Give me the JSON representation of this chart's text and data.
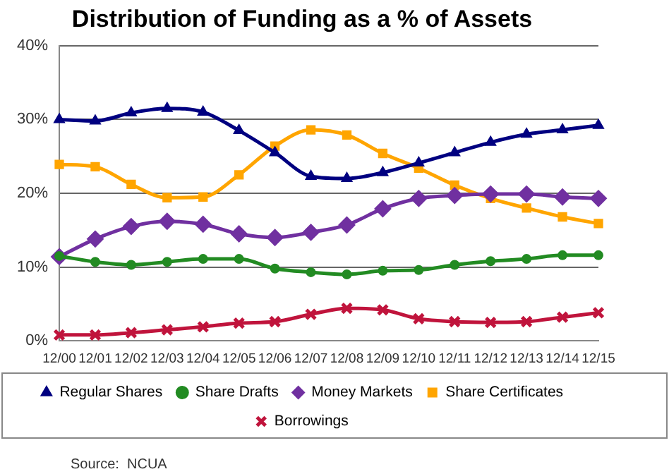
{
  "chart_data": {
    "type": "line",
    "title": "Distribution of Funding as a % of Assets",
    "categories": [
      "12/00",
      "12/01",
      "12/02",
      "12/03",
      "12/04",
      "12/05",
      "12/06",
      "12/07",
      "12/08",
      "12/09",
      "12/10",
      "12/11",
      "12/12",
      "12/13",
      "12/14",
      "12/15"
    ],
    "series": [
      {
        "name": "Regular Shares",
        "color": "#000080",
        "marker": "triangle",
        "values": [
          30.0,
          29.8,
          30.9,
          31.5,
          31.0,
          28.5,
          25.5,
          22.3,
          22.0,
          22.8,
          24.1,
          25.5,
          26.9,
          28.0,
          28.6,
          29.2
        ]
      },
      {
        "name": "Share Drafts",
        "color": "#228b22",
        "marker": "circle",
        "values": [
          11.5,
          10.7,
          10.3,
          10.7,
          11.1,
          11.1,
          9.8,
          9.3,
          9.0,
          9.5,
          9.6,
          10.3,
          10.8,
          11.1,
          11.6,
          11.6
        ]
      },
      {
        "name": "Money Markets",
        "color": "#7030a0",
        "marker": "diamond",
        "values": [
          11.4,
          13.8,
          15.5,
          16.2,
          15.8,
          14.5,
          14.0,
          14.7,
          15.7,
          17.9,
          19.3,
          19.7,
          19.9,
          19.9,
          19.5,
          19.3
        ]
      },
      {
        "name": "Share Certificates",
        "color": "#ffa500",
        "marker": "square",
        "values": [
          23.9,
          23.6,
          21.2,
          19.4,
          19.5,
          22.5,
          26.4,
          28.6,
          27.9,
          25.4,
          23.4,
          21.1,
          19.3,
          18.0,
          16.8,
          15.9
        ]
      },
      {
        "name": "Borrowings",
        "color": "#c0143c",
        "marker": "cross",
        "values": [
          0.8,
          0.8,
          1.1,
          1.5,
          1.9,
          2.4,
          2.6,
          3.6,
          4.4,
          4.2,
          3.0,
          2.6,
          2.5,
          2.6,
          3.2,
          3.8
        ]
      }
    ],
    "ylim": [
      0,
      40
    ],
    "yticks": [
      {
        "value": 0,
        "label": "0%"
      },
      {
        "value": 10,
        "label": "10%"
      },
      {
        "value": 20,
        "label": "20%"
      },
      {
        "value": 30,
        "label": "30%"
      },
      {
        "value": 40,
        "label": "40%"
      }
    ],
    "grid": "y",
    "legend": "bottom",
    "line_style": "solid",
    "annotations": [
      "Source:  NCUA"
    ]
  }
}
